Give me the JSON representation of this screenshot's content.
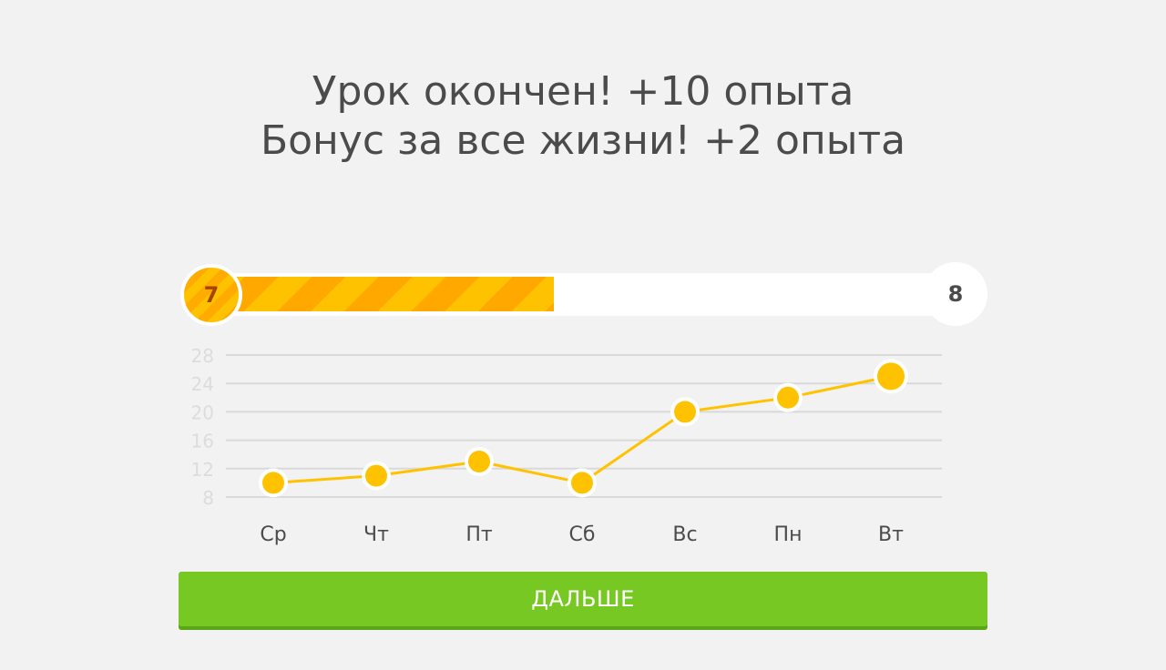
{
  "header": {
    "line1": "Урок окончен! +10 опыта",
    "line2": "Бонус за все жизни! +2 опыта"
  },
  "level_progress": {
    "current_level": "7",
    "next_level": "8",
    "progress_fraction": 0.46,
    "fill_color": "#ffc200",
    "stripe_color": "#ffa800"
  },
  "chart_data": {
    "type": "line",
    "categories": [
      "Ср",
      "Чт",
      "Пт",
      "Сб",
      "Вс",
      "Пн",
      "Вт"
    ],
    "values": [
      10,
      11,
      13,
      10,
      20,
      22,
      25
    ],
    "yticks": [
      "8",
      "12",
      "16",
      "20",
      "24",
      "28"
    ],
    "ylim": [
      8,
      28
    ],
    "grid": true,
    "line_color": "#ffc200",
    "title": "",
    "xlabel": "",
    "ylabel": ""
  },
  "actions": {
    "continue_label": "ДАЛЬШЕ"
  }
}
